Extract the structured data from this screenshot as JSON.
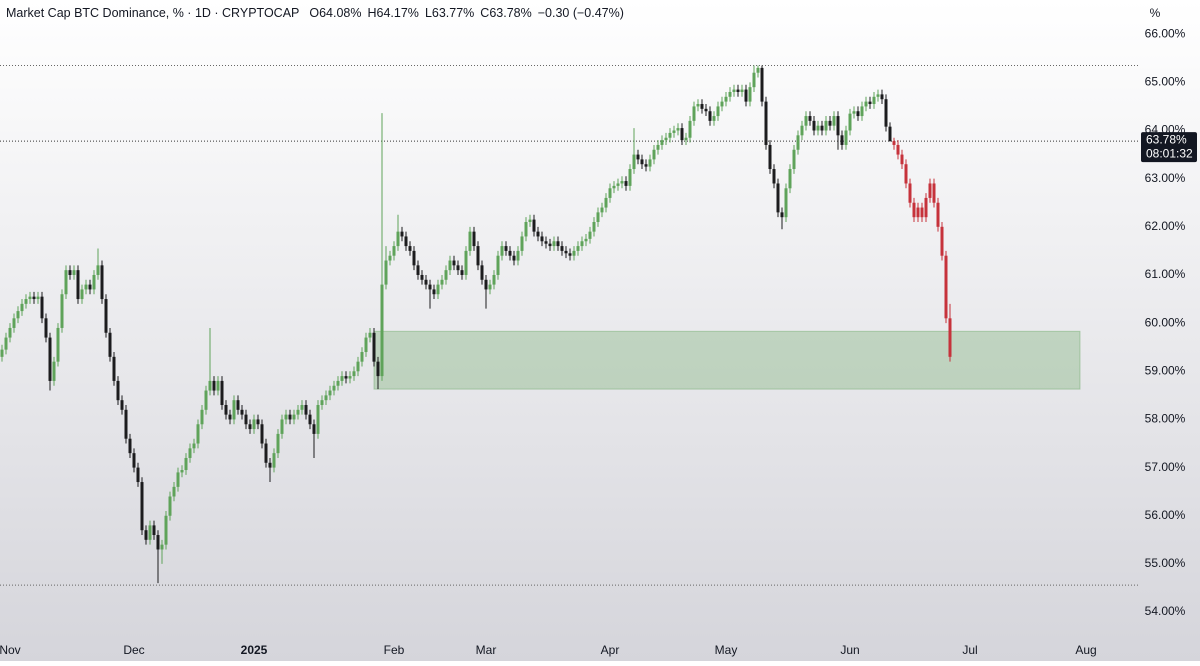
{
  "chart_data": {
    "type": "candlestick",
    "title": "Market Cap BTC Dominance, % · 1D · CRYPTOCAP",
    "legend_values": [
      "O64.08%",
      "H64.17%",
      "L63.77%",
      "C63.78%",
      "−0.30 (−0.47%)"
    ],
    "unit_label": "%",
    "up_color": "#5fa35a",
    "down_color": "#1c1c1e",
    "open": [
      59.3,
      59.45,
      59.7,
      59.9,
      60.1,
      60.25,
      60.4,
      60.5,
      60.55,
      60.5,
      60.55,
      60.1,
      59.7,
      58.8,
      59.2,
      59.9,
      60.6,
      61.1,
      61.0,
      61.1,
      60.5,
      60.7,
      60.8,
      60.7,
      61.0,
      61.2,
      60.5,
      59.8,
      59.3,
      58.8,
      58.4,
      58.2,
      57.6,
      57.3,
      57.0,
      56.7,
      55.7,
      55.5,
      55.8,
      55.6,
      55.3,
      55.4,
      56.0,
      56.4,
      56.6,
      56.9,
      56.95,
      57.2,
      57.4,
      57.5,
      57.9,
      58.2,
      58.6,
      58.8,
      58.6,
      58.8,
      58.3,
      58.1,
      58.0,
      58.4,
      58.2,
      58.1,
      57.9,
      57.8,
      58.0,
      57.9,
      57.5,
      57.1,
      57.0,
      57.3,
      57.7,
      58.0,
      58.1,
      58.0,
      58.1,
      58.2,
      58.3,
      58.1,
      57.9,
      57.7,
      58.3,
      58.4,
      58.5,
      58.6,
      58.7,
      58.8,
      58.9,
      58.85,
      58.9,
      59.0,
      59.2,
      59.4,
      59.7,
      59.8,
      59.2,
      58.9,
      60.8,
      61.3,
      61.4,
      61.6,
      61.9,
      61.8,
      61.6,
      61.5,
      61.2,
      61.0,
      60.9,
      60.8,
      60.7,
      60.6,
      60.8,
      60.9,
      61.1,
      61.3,
      61.2,
      61.1,
      61.0,
      61.5,
      61.9,
      61.6,
      61.2,
      60.9,
      60.7,
      60.8,
      61.0,
      61.4,
      61.6,
      61.5,
      61.4,
      61.3,
      61.5,
      61.8,
      62.1,
      62.15,
      61.9,
      61.8,
      61.7,
      61.65,
      61.6,
      61.7,
      61.6,
      61.5,
      61.45,
      61.4,
      61.5,
      61.6,
      61.7,
      61.75,
      61.9,
      62.1,
      62.3,
      62.4,
      62.6,
      62.8,
      62.85,
      62.9,
      62.95,
      62.85,
      63.2,
      63.5,
      63.4,
      63.3,
      63.25,
      63.4,
      63.6,
      63.7,
      63.8,
      63.85,
      63.95,
      64.0,
      64.05,
      63.8,
      63.85,
      64.2,
      64.5,
      64.55,
      64.45,
      64.4,
      64.2,
      64.3,
      64.5,
      64.6,
      64.7,
      64.8,
      64.85,
      64.8,
      64.85,
      64.6,
      64.9,
      65.2,
      65.3,
      64.6,
      63.7,
      63.2,
      62.9,
      62.3,
      62.2,
      62.8,
      63.2,
      63.6,
      63.9,
      64.1,
      64.3,
      64.2,
      64.0,
      64.1,
      64.0,
      64.2,
      64.1,
      64.3,
      63.9,
      63.7,
      64.0,
      64.35,
      64.4,
      64.3,
      64.5,
      64.6,
      64.55,
      64.7,
      64.75,
      64.65,
      64.08
    ],
    "high": [
      59.55,
      59.8,
      60.0,
      60.2,
      60.35,
      60.5,
      60.6,
      60.65,
      60.65,
      60.65,
      60.65,
      60.2,
      59.8,
      59.3,
      60.0,
      60.7,
      61.2,
      61.2,
      61.2,
      61.2,
      60.8,
      60.9,
      60.9,
      61.1,
      61.55,
      61.3,
      60.6,
      59.9,
      59.4,
      58.9,
      58.5,
      58.3,
      57.7,
      57.4,
      57.1,
      56.8,
      55.8,
      55.9,
      55.9,
      55.7,
      55.5,
      56.1,
      56.5,
      56.7,
      57.0,
      57.05,
      57.3,
      57.5,
      57.6,
      58.0,
      58.3,
      58.7,
      59.9,
      58.9,
      58.9,
      58.9,
      58.4,
      58.2,
      58.5,
      58.5,
      58.3,
      58.2,
      58.0,
      58.1,
      58.1,
      58.0,
      57.6,
      57.2,
      57.4,
      57.8,
      58.1,
      58.2,
      58.2,
      58.2,
      58.3,
      58.4,
      58.4,
      58.2,
      58.0,
      58.4,
      58.5,
      58.6,
      58.7,
      58.8,
      58.9,
      59.0,
      59.0,
      59.0,
      59.1,
      59.3,
      59.5,
      59.8,
      59.9,
      59.9,
      59.3,
      64.36,
      61.6,
      61.5,
      61.7,
      62.25,
      62.0,
      61.9,
      61.7,
      61.6,
      61.3,
      61.1,
      61.0,
      60.9,
      60.8,
      60.9,
      61.0,
      61.2,
      61.4,
      61.4,
      61.3,
      61.2,
      61.6,
      62.0,
      62.0,
      61.7,
      61.3,
      61.0,
      60.9,
      61.1,
      61.5,
      61.7,
      61.7,
      61.6,
      61.5,
      61.6,
      61.9,
      62.2,
      62.25,
      62.25,
      62.0,
      61.9,
      61.8,
      61.75,
      61.8,
      61.8,
      61.7,
      61.6,
      61.55,
      61.6,
      61.7,
      61.8,
      61.85,
      62.0,
      62.2,
      62.4,
      62.5,
      62.7,
      62.9,
      62.95,
      63.0,
      63.05,
      63.05,
      63.3,
      64.05,
      63.6,
      63.5,
      63.4,
      63.5,
      63.7,
      63.8,
      63.9,
      63.95,
      64.05,
      64.1,
      64.15,
      64.15,
      63.95,
      64.3,
      64.6,
      64.65,
      64.65,
      64.55,
      64.5,
      64.4,
      64.6,
      64.7,
      64.8,
      64.9,
      64.95,
      64.95,
      64.95,
      64.95,
      65.0,
      65.35,
      65.35,
      65.35,
      64.7,
      63.8,
      63.3,
      63.0,
      62.4,
      62.9,
      63.3,
      63.7,
      64.0,
      64.2,
      64.4,
      64.4,
      64.3,
      64.2,
      64.2,
      64.3,
      64.3,
      64.4,
      64.4,
      64.0,
      64.1,
      64.45,
      64.5,
      64.5,
      64.6,
      64.7,
      64.7,
      64.8,
      64.85,
      64.85,
      64.75,
      64.17
    ],
    "low": [
      59.2,
      59.35,
      59.6,
      59.8,
      60.0,
      60.15,
      60.3,
      60.4,
      60.4,
      60.4,
      60.0,
      59.6,
      58.6,
      58.7,
      59.1,
      59.8,
      60.5,
      60.9,
      60.9,
      60.4,
      60.4,
      60.6,
      60.6,
      60.6,
      60.9,
      60.4,
      59.7,
      59.2,
      58.7,
      58.3,
      58.1,
      57.5,
      57.2,
      56.9,
      56.6,
      55.6,
      55.4,
      55.4,
      55.5,
      54.6,
      55.0,
      55.3,
      55.9,
      56.3,
      56.5,
      56.8,
      56.85,
      57.1,
      57.3,
      57.4,
      57.8,
      58.1,
      58.5,
      58.5,
      58.5,
      58.2,
      58.0,
      57.9,
      57.9,
      58.1,
      58.0,
      57.8,
      57.7,
      57.7,
      57.8,
      57.4,
      57.0,
      56.7,
      56.9,
      57.2,
      57.6,
      57.9,
      57.9,
      57.9,
      58.0,
      58.1,
      58.0,
      57.8,
      57.2,
      57.6,
      58.2,
      58.3,
      58.4,
      58.5,
      58.6,
      58.7,
      58.75,
      58.75,
      58.8,
      58.9,
      59.1,
      59.3,
      59.6,
      59.1,
      58.63,
      58.8,
      60.7,
      61.2,
      61.3,
      61.5,
      61.7,
      61.5,
      61.4,
      61.1,
      60.9,
      60.8,
      60.7,
      60.3,
      60.5,
      60.5,
      60.7,
      60.8,
      61.0,
      61.1,
      61.0,
      60.9,
      60.9,
      61.4,
      61.5,
      61.1,
      60.8,
      60.3,
      60.6,
      60.7,
      60.9,
      61.3,
      61.4,
      61.3,
      61.2,
      61.2,
      61.4,
      61.7,
      62.0,
      61.8,
      61.7,
      61.6,
      61.55,
      61.5,
      61.5,
      61.5,
      61.4,
      61.35,
      61.3,
      61.3,
      61.4,
      61.5,
      61.6,
      61.65,
      61.8,
      62.0,
      62.2,
      62.3,
      62.5,
      62.7,
      62.75,
      62.8,
      62.75,
      62.75,
      63.1,
      63.3,
      63.2,
      63.15,
      63.15,
      63.3,
      63.5,
      63.6,
      63.7,
      63.75,
      63.85,
      63.9,
      63.7,
      63.7,
      63.75,
      64.1,
      64.4,
      64.35,
      64.3,
      64.1,
      64.1,
      64.2,
      64.4,
      64.5,
      64.6,
      64.7,
      64.7,
      64.7,
      64.5,
      64.5,
      64.8,
      65.1,
      64.5,
      63.6,
      63.1,
      62.8,
      62.2,
      61.95,
      62.1,
      62.7,
      63.1,
      63.5,
      63.8,
      64.0,
      64.1,
      63.9,
      63.9,
      63.9,
      63.9,
      64.0,
      64.0,
      63.6,
      63.6,
      63.6,
      63.9,
      64.25,
      64.2,
      64.2,
      64.4,
      64.45,
      64.45,
      64.6,
      64.55,
      63.98,
      63.77
    ],
    "close": [
      59.45,
      59.7,
      59.9,
      60.1,
      60.25,
      60.4,
      60.5,
      60.55,
      60.5,
      60.55,
      60.1,
      59.7,
      58.8,
      59.2,
      59.9,
      60.6,
      61.1,
      61.0,
      61.1,
      60.5,
      60.7,
      60.8,
      60.7,
      61.0,
      61.2,
      60.5,
      59.8,
      59.3,
      58.8,
      58.4,
      58.2,
      57.6,
      57.3,
      57.0,
      56.7,
      55.7,
      55.5,
      55.8,
      55.6,
      55.3,
      55.4,
      56.0,
      56.4,
      56.6,
      56.9,
      56.95,
      57.2,
      57.4,
      57.5,
      57.9,
      58.2,
      58.6,
      58.8,
      58.6,
      58.8,
      58.3,
      58.1,
      58.0,
      58.4,
      58.2,
      58.1,
      57.9,
      57.8,
      58.0,
      57.9,
      57.5,
      57.1,
      57.0,
      57.3,
      57.7,
      58.0,
      58.1,
      58.0,
      58.1,
      58.2,
      58.3,
      58.1,
      57.9,
      57.7,
      58.3,
      58.4,
      58.5,
      58.6,
      58.7,
      58.8,
      58.9,
      58.85,
      58.9,
      59.0,
      59.2,
      59.4,
      59.7,
      59.8,
      59.2,
      58.9,
      60.8,
      61.3,
      61.4,
      61.6,
      61.9,
      61.8,
      61.6,
      61.5,
      61.2,
      61.0,
      60.9,
      60.8,
      60.7,
      60.6,
      60.8,
      60.9,
      61.1,
      61.3,
      61.2,
      61.1,
      61.0,
      61.5,
      61.9,
      61.6,
      61.2,
      60.9,
      60.7,
      60.8,
      61.0,
      61.4,
      61.6,
      61.5,
      61.4,
      61.3,
      61.5,
      61.8,
      62.1,
      62.15,
      61.9,
      61.8,
      61.7,
      61.65,
      61.6,
      61.7,
      61.6,
      61.5,
      61.45,
      61.4,
      61.5,
      61.6,
      61.7,
      61.75,
      61.9,
      62.1,
      62.3,
      62.4,
      62.6,
      62.8,
      62.85,
      62.9,
      62.95,
      62.85,
      63.2,
      63.5,
      63.4,
      63.3,
      63.25,
      63.4,
      63.6,
      63.7,
      63.8,
      63.85,
      63.95,
      64.0,
      64.05,
      63.8,
      63.85,
      64.2,
      64.5,
      64.55,
      64.45,
      64.4,
      64.2,
      64.3,
      64.5,
      64.6,
      64.7,
      64.8,
      64.85,
      64.8,
      64.85,
      64.6,
      64.9,
      65.2,
      65.3,
      64.6,
      63.7,
      63.2,
      62.9,
      62.3,
      62.2,
      62.8,
      63.2,
      63.6,
      63.9,
      64.1,
      64.3,
      64.2,
      64.0,
      64.1,
      64.0,
      64.2,
      64.1,
      64.3,
      63.9,
      63.7,
      64.0,
      64.35,
      64.4,
      64.3,
      64.5,
      64.6,
      64.55,
      64.7,
      64.75,
      64.65,
      64.08,
      63.78
    ],
    "projection": {
      "color": "#c6323b",
      "open": [
        63.78,
        63.7,
        63.5,
        63.3,
        62.9,
        62.5,
        62.2,
        62.4,
        62.2,
        62.6,
        62.9,
        62.5,
        62.0,
        61.4,
        60.1
      ],
      "high": [
        63.85,
        63.8,
        63.6,
        63.4,
        63.0,
        62.6,
        62.5,
        62.5,
        62.7,
        63.0,
        63.0,
        62.6,
        62.1,
        61.5,
        60.4
      ],
      "low": [
        63.6,
        63.4,
        63.2,
        62.8,
        62.4,
        62.1,
        62.1,
        62.1,
        62.1,
        62.5,
        62.4,
        61.9,
        61.3,
        60.0,
        59.2
      ],
      "close": [
        63.7,
        63.5,
        63.3,
        62.9,
        62.5,
        62.2,
        62.4,
        62.2,
        62.6,
        62.9,
        62.5,
        62.0,
        61.4,
        60.1,
        59.3
      ]
    },
    "zone": {
      "ylim": [
        58.63,
        59.83
      ],
      "xlim": [
        93,
        269.5
      ],
      "color": "#5fa35a"
    },
    "levels": [
      65.35,
      54.56
    ],
    "price_label": {
      "value": 63.78,
      "label": "63.78%"
    },
    "countdown": "08:01:32",
    "xlim": [
      -0.5,
      282
    ],
    "ylim": [
      53.42,
      66.71
    ],
    "xticks": [
      {
        "value": 2,
        "label": "Nov"
      },
      {
        "value": 33,
        "label": "Dec"
      },
      {
        "value": 63,
        "label": "2025"
      },
      {
        "value": 98,
        "label": "Feb"
      },
      {
        "value": 121,
        "label": "Mar"
      },
      {
        "value": 152,
        "label": "Apr"
      },
      {
        "value": 181,
        "label": "May"
      },
      {
        "value": 212,
        "label": "Jun"
      },
      {
        "value": 242,
        "label": "Jul"
      },
      {
        "value": 271,
        "label": "Aug"
      }
    ],
    "yticks": [
      {
        "value": 54,
        "label": "54.00%"
      },
      {
        "value": 55,
        "label": "55.00%"
      },
      {
        "value": 56,
        "label": "56.00%"
      },
      {
        "value": 57,
        "label": "57.00%"
      },
      {
        "value": 58,
        "label": "58.00%"
      },
      {
        "value": 59,
        "label": "59.00%"
      },
      {
        "value": 60,
        "label": "60.00%"
      },
      {
        "value": 61,
        "label": "61.00%"
      },
      {
        "value": 62,
        "label": "62.00%"
      },
      {
        "value": 63,
        "label": "63.00%"
      },
      {
        "value": 64,
        "label": "64.00%"
      },
      {
        "value": 65,
        "label": "65.00%"
      },
      {
        "value": 66,
        "label": "66.00%"
      }
    ]
  }
}
